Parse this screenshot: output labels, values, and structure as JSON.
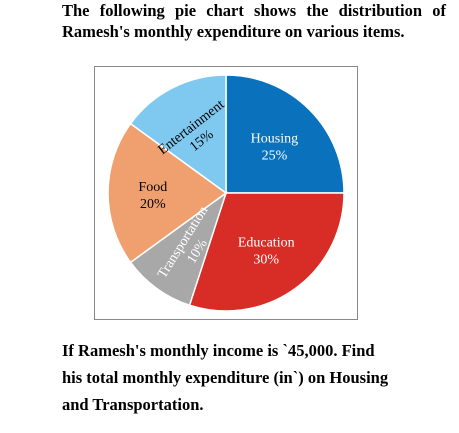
{
  "question": {
    "intro": "The following pie chart shows the distribution of Ramesh's monthly expenditure on various items.",
    "text_line1": "If Ramesh's monthly income is `45,000. Find",
    "text_line2": "his total monthly expenditure (in`) on Housing",
    "text_line3": "and Transportation."
  },
  "chart_data": {
    "type": "pie",
    "title": "",
    "slices": [
      {
        "label": "Housing",
        "value": 25,
        "value_label": "25%",
        "color": "#0a72bd",
        "text_color": "#ffffff"
      },
      {
        "label": "Education",
        "value": 30,
        "value_label": "30%",
        "color": "#d82d27",
        "text_color": "#ffffff"
      },
      {
        "label": "Transportation",
        "value": 10,
        "value_label": "10%",
        "color": "#a8a8a8",
        "text_color": "#ffffff"
      },
      {
        "label": "Food",
        "value": 20,
        "value_label": "20%",
        "color": "#f0a06e",
        "text_color": "#000000"
      },
      {
        "label": "Entertainment",
        "value": 15,
        "value_label": "15%",
        "color": "#7fc9f0",
        "text_color": "#000000"
      }
    ],
    "start": "top, clockwise"
  }
}
